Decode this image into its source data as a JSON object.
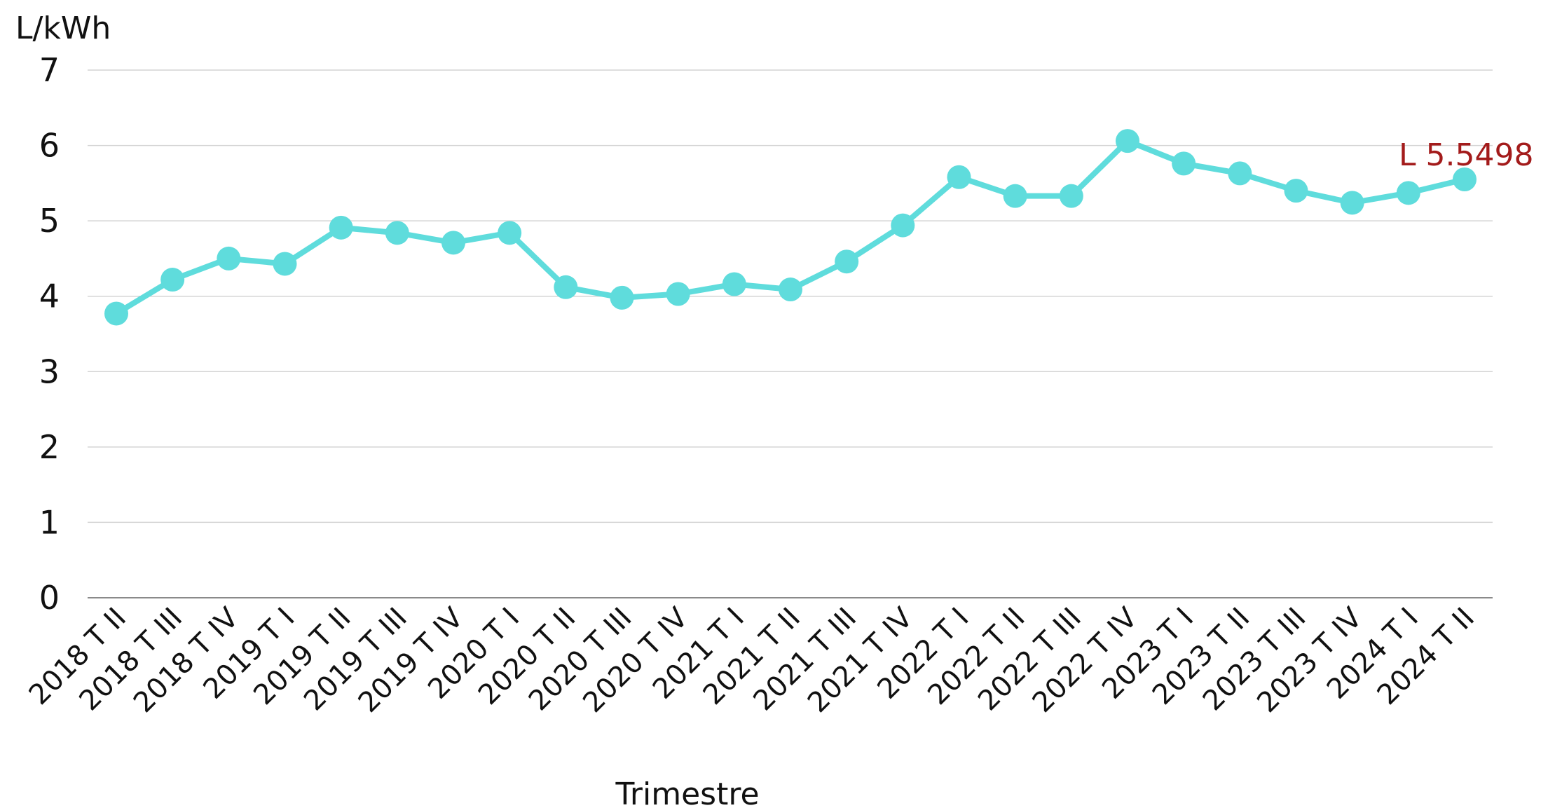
{
  "chart_data": {
    "type": "line",
    "ylabel": "L/kWh",
    "xlabel": "Trimestre",
    "ylim": [
      0,
      7
    ],
    "yticks": [
      "0",
      "1",
      "2",
      "3",
      "4",
      "5",
      "6",
      "7"
    ],
    "grid": true,
    "legend": "none",
    "categories": [
      "2018 T II",
      "2018 T III",
      "2018 T IV",
      "2019 T I",
      "2019 T II",
      "2019 T III",
      "2019 T IV",
      "2020 T I",
      "2020 T II",
      "2020 T III",
      "2020 T IV",
      "2021 T I",
      "2021 T II",
      "2021 T III",
      "2021 T IV",
      "2022 T I",
      "2022 T II",
      "2022 T III",
      "2022 T IV",
      "2023 T I",
      "2023 T II",
      "2023 T III",
      "2023 T IV",
      "2024 T I",
      "2024 T II"
    ],
    "series": [
      {
        "color": "#5fdcdc",
        "values": [
          3.77,
          4.22,
          4.5,
          4.43,
          4.91,
          4.84,
          4.71,
          4.84,
          4.12,
          3.98,
          4.03,
          4.16,
          4.09,
          4.46,
          4.94,
          5.58,
          5.33,
          5.33,
          6.06,
          5.76,
          5.63,
          5.4,
          5.24,
          5.37,
          5.5498
        ]
      }
    ],
    "annotation": {
      "text": "L 5.5498",
      "color": "#a31b1b"
    }
  }
}
